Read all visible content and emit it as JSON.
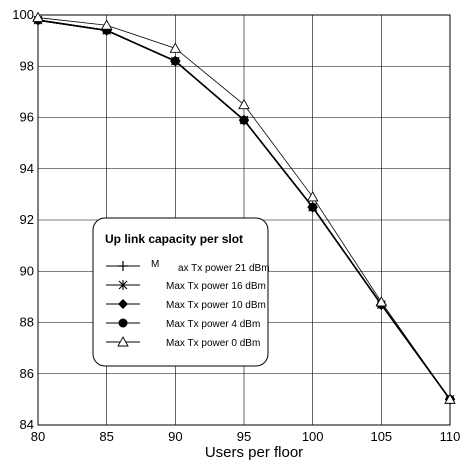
{
  "chart_data": {
    "type": "line",
    "title": "",
    "xlabel": "Users per floor",
    "ylabel": "",
    "x": [
      80,
      85,
      90,
      95,
      100,
      105,
      110
    ],
    "xlim": [
      80,
      110
    ],
    "ylim": [
      84,
      100
    ],
    "xticks": [
      80,
      85,
      90,
      95,
      100,
      105,
      110
    ],
    "yticks": [
      84,
      86,
      88,
      90,
      92,
      94,
      96,
      98,
      100
    ],
    "grid": true,
    "legend": {
      "title": "Up link capacity per slot",
      "placement": "center-left"
    },
    "series": [
      {
        "name": "Max Tx power 21 dBm",
        "legend_label_parts": [
          "M",
          "ax Tx power 21 dBm"
        ],
        "marker": "plus",
        "values": [
          99.8,
          99.4,
          98.2,
          95.9,
          92.5,
          88.7,
          85.0
        ]
      },
      {
        "name": "Max Tx power 16 dBm",
        "marker": "asterisk",
        "values": [
          99.8,
          99.4,
          98.2,
          95.9,
          92.5,
          88.7,
          85.0
        ]
      },
      {
        "name": "Max Tx power 10 dBm",
        "marker": "diamond",
        "values": [
          99.8,
          99.4,
          98.2,
          95.9,
          92.5,
          88.7,
          85.0
        ]
      },
      {
        "name": "Max Tx power 4 dBm",
        "marker": "circle",
        "values": [
          99.8,
          99.4,
          98.2,
          95.9,
          92.5,
          88.7,
          85.0
        ]
      },
      {
        "name": "Max Tx power 0 dBm",
        "marker": "triangle",
        "values": [
          99.9,
          99.6,
          98.7,
          96.5,
          92.9,
          88.8,
          85.0
        ]
      }
    ]
  }
}
